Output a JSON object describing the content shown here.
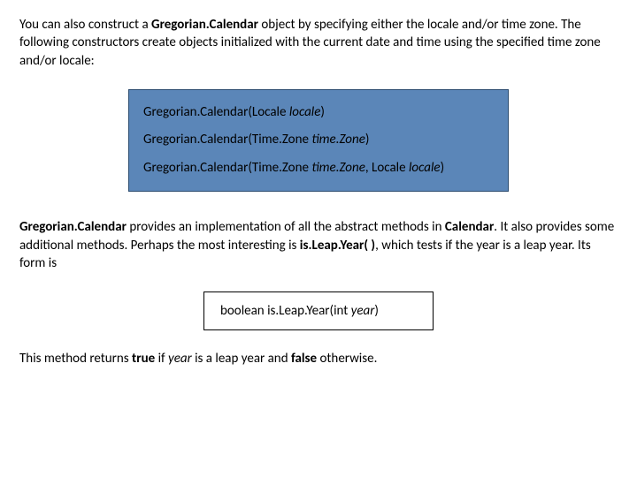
{
  "intro": {
    "part1": "You can also construct a ",
    "bold1": "Gregorian.Calendar",
    "part2": " object by specifying either the locale and/or time zone. The following constructors create objects initialized with the current date and time using the specified time zone and/or locale:"
  },
  "constructors": {
    "row1_a": "Gregorian.Calendar(Locale ",
    "row1_b": "locale",
    "row1_c": ")",
    "row2_a": "Gregorian.Calendar(Time.Zone ",
    "row2_b": "time.Zone",
    "row2_c": ")",
    "row3_a": "Gregorian.Calendar(Time.Zone ",
    "row3_b": "time.Zone",
    "row3_c": ", Locale ",
    "row3_d": "locale",
    "row3_e": ")"
  },
  "middle": {
    "bold1": "Gregorian.Calendar",
    "part1": " provides an implementation of all the abstract methods in ",
    "bold2": "Calendar",
    "part2": ". It also provides some additional methods. Perhaps the most interesting is ",
    "bold3": "is.Leap.Year( )",
    "part3": ", which tests if the year is a leap year. Its form is"
  },
  "method": {
    "a": "boolean is.Leap.Year(int ",
    "b": "year",
    "c": ")"
  },
  "outro": {
    "part1": "This method returns ",
    "bold1": "true",
    "part2": " if ",
    "ital1": "year",
    "part3": " is a leap year and ",
    "bold2": "false",
    "part4": " otherwise."
  }
}
